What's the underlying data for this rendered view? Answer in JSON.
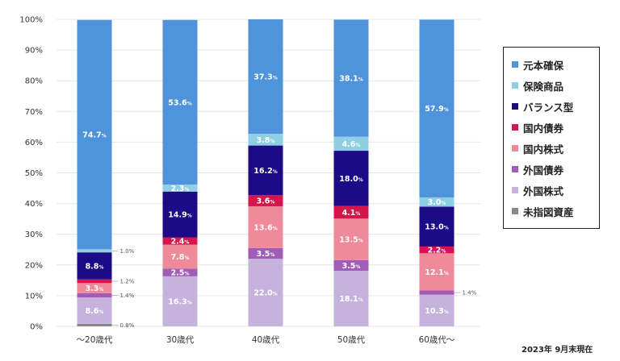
{
  "chart_data": {
    "type": "bar",
    "stacked": true,
    "categories": [
      "〜20歳代",
      "30歳代",
      "40歳代",
      "50歳代",
      "60歳代〜"
    ],
    "ylim": [
      0,
      100
    ],
    "yticks": [
      "0%",
      "10%",
      "20%",
      "30%",
      "40%",
      "50%",
      "60%",
      "70%",
      "80%",
      "90%",
      "100%"
    ],
    "grid": true,
    "legend_position": "right",
    "series": [
      {
        "name": "未指図資産",
        "color": "#888888",
        "values": [
          0.8,
          0,
          0,
          0,
          0
        ],
        "labels": [
          "0.8%",
          "",
          "",
          "",
          ""
        ]
      },
      {
        "name": "外国株式",
        "color": "#c5b3dd",
        "values": [
          8.6,
          16.3,
          22.0,
          18.1,
          10.3
        ],
        "labels": [
          "8.6%",
          "16.3%",
          "22.0%",
          "18.1%",
          "10.3%"
        ]
      },
      {
        "name": "外国債券",
        "color": "#a15cb8",
        "values": [
          1.4,
          2.5,
          3.5,
          3.5,
          1.4
        ],
        "labels": [
          "1.4%",
          "2.5%",
          "3.5%",
          "3.5%",
          "1.4%"
        ]
      },
      {
        "name": "国内株式",
        "color": "#ee8a9a",
        "values": [
          3.3,
          7.8,
          13.6,
          13.5,
          12.1
        ],
        "labels": [
          "3.3%",
          "7.8%",
          "13.6%",
          "13.5%",
          "12.1%"
        ]
      },
      {
        "name": "国内債券",
        "color": "#d4164d",
        "values": [
          1.2,
          2.4,
          3.6,
          4.1,
          2.2
        ],
        "labels": [
          "1.2%",
          "2.4%",
          "3.6%",
          "4.1%",
          "2.2%"
        ]
      },
      {
        "name": "バランス型",
        "color": "#1d0a86",
        "values": [
          8.8,
          14.9,
          16.2,
          18.0,
          13.0
        ],
        "labels": [
          "8.8%",
          "14.9%",
          "16.2%",
          "18.0%",
          "13.0%"
        ]
      },
      {
        "name": "保険商品",
        "color": "#8fcfe3",
        "values": [
          1.0,
          2.3,
          3.8,
          4.6,
          3.0
        ],
        "labels": [
          "1.0%",
          "2.3%",
          "3.8%",
          "4.6%",
          "3.0%"
        ]
      },
      {
        "name": "元本確保",
        "color": "#4f94db",
        "values": [
          74.7,
          53.6,
          37.3,
          38.1,
          57.9
        ],
        "labels": [
          "74.7%",
          "53.6%",
          "37.3%",
          "38.1%",
          "57.9%"
        ]
      }
    ],
    "legend_order": [
      "元本確保",
      "保険商品",
      "バランス型",
      "国内債券",
      "国内株式",
      "外国債券",
      "外国株式",
      "未指図資産"
    ]
  },
  "footnote": "2023年 9月末現在"
}
